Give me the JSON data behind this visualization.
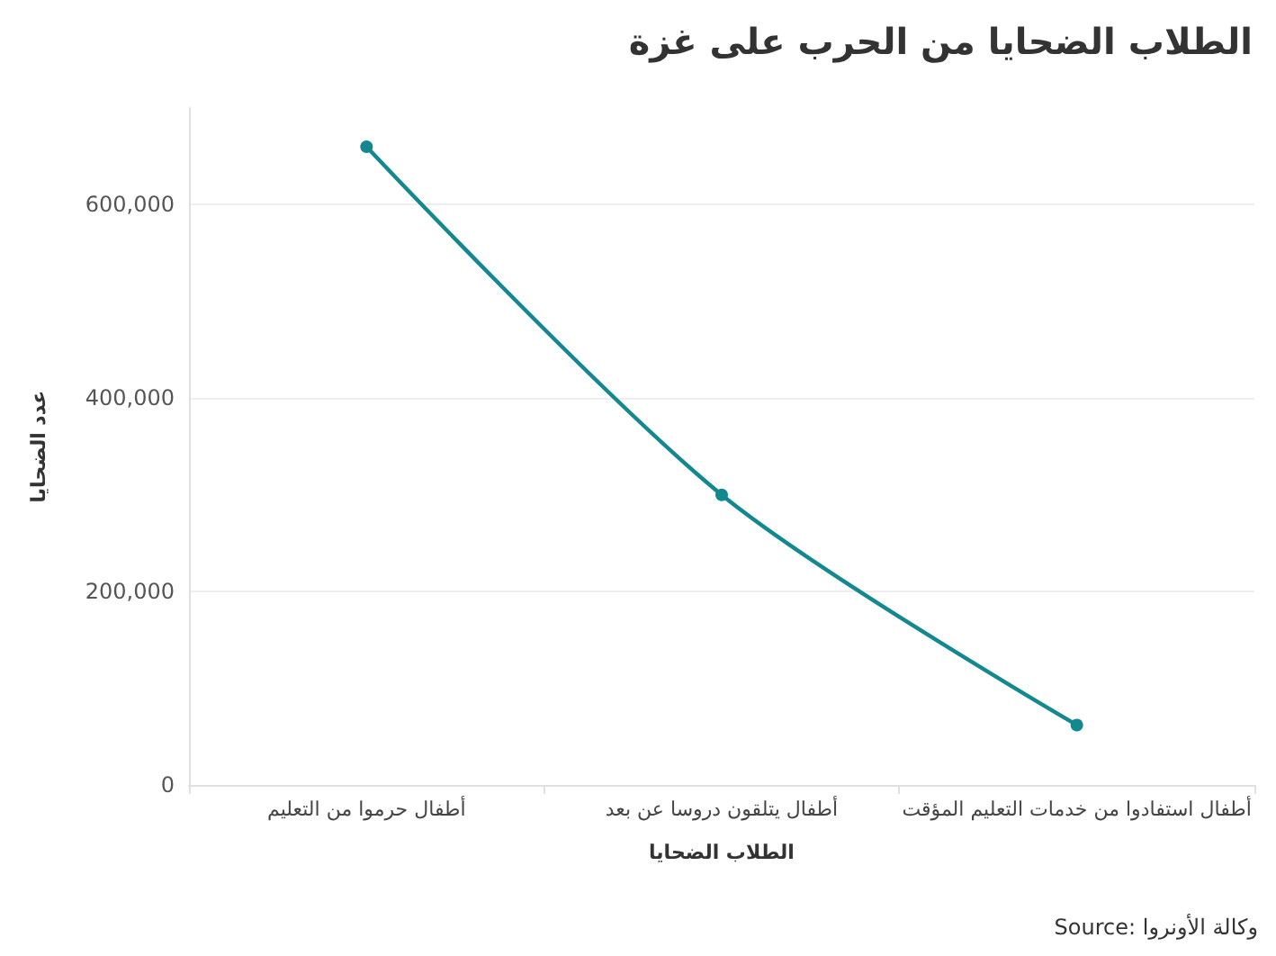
{
  "chart_data": {
    "type": "line",
    "title": "الطلاب الضحايا من الحرب على غزة",
    "xlabel": "الطلاب الضحايا",
    "ylabel": "عدد الضحايا",
    "categories": [
      "أطفال حرموا من التعليم",
      "أطفال يتلقون دروسا عن بعد",
      "أطفال استفادوا من خدمات التعليم المؤقت"
    ],
    "series": [
      {
        "color": "#13888f",
        "values": [
          660000,
          300000,
          62000
        ]
      }
    ],
    "ylim": [
      0,
      700000
    ],
    "yticks": [
      {
        "value": 0,
        "label": "0"
      },
      {
        "value": 200000,
        "label": "200,000"
      },
      {
        "value": 400000,
        "label": "400,000"
      },
      {
        "value": 600000,
        "label": "600,000"
      }
    ],
    "grid": "y",
    "marker": "circle",
    "line_style": "solid",
    "annotations": [
      "Source: وكالة الأونروا"
    ]
  }
}
